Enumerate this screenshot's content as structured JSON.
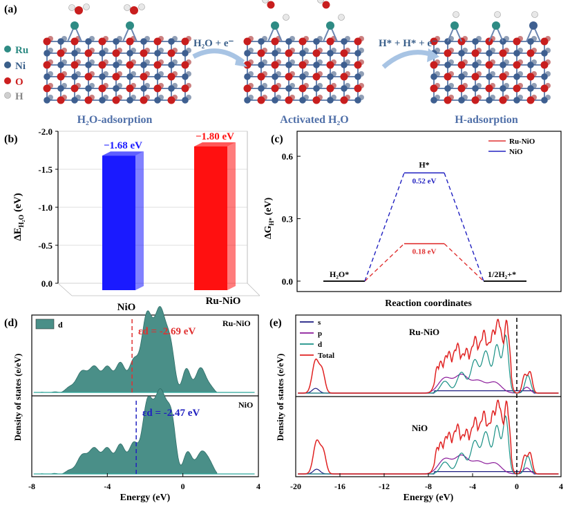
{
  "panel_a": {
    "label": "(a)",
    "legend": [
      {
        "symbol": "Ru",
        "color": "#2e8b84"
      },
      {
        "symbol": "Ni",
        "color": "#3a5f8a"
      },
      {
        "symbol": "O",
        "color": "#cc1f1f"
      },
      {
        "symbol": "H",
        "color": "#bfbfbf"
      }
    ],
    "stages": [
      "H₂O-adsorption",
      "Activated H₂O",
      "H-adsorption"
    ],
    "arrow1": "H₂O + e⁻",
    "arrow2": "H* + H* + e⁻",
    "colors": {
      "ni": "#3e5f90",
      "o": "#c81e1e",
      "ru": "#2e8b84",
      "h": "#e8e8e8",
      "caption": "#4f6fa8"
    }
  },
  "chart_data": [
    {
      "panel": "(b)",
      "type": "bar",
      "categories": [
        "NiO",
        "Ru-NiO"
      ],
      "values": [
        -1.68,
        -1.8
      ],
      "value_labels": [
        "−1.68 eV",
        "−1.80 eV"
      ],
      "colors": [
        "#1a1aff",
        "#ff1010"
      ],
      "ylabel": "ΔE_H₂O (eV)",
      "ylim": [
        0.0,
        -2.0
      ],
      "yticks": [
        "-2.0",
        "-1.5",
        "-1.0",
        "-0.5",
        "0.0"
      ]
    },
    {
      "panel": "(c)",
      "type": "line",
      "xlabel": "Reaction coordinates",
      "ylabel": "ΔG_H* (eV)",
      "ylim": [
        -0.05,
        0.72
      ],
      "yticks": [
        "0.0",
        "0.3",
        "0.6"
      ],
      "states": [
        "H₂O*",
        "H*",
        "1/2H₂+*"
      ],
      "series": [
        {
          "name": "Ru-NiO",
          "color": "#e03030",
          "values": [
            0.0,
            0.18,
            0.0
          ],
          "label": "0.18 eV"
        },
        {
          "name": "NiO",
          "color": "#2020c0",
          "values": [
            0.0,
            0.52,
            0.0
          ],
          "label": "0.52 eV"
        }
      ]
    },
    {
      "panel": "(d)",
      "type": "area",
      "xlabel": "Energy (eV)",
      "ylabel": "Density of states (e/eV)",
      "xlim": [
        -8,
        4
      ],
      "xticks": [
        "-8",
        "-4",
        "0",
        "4"
      ],
      "legend": "d",
      "subplots": [
        {
          "name": "Ru-NiO",
          "d_band_center": "εd = -2.69 eV",
          "center_value": -2.69,
          "color": "#e03030"
        },
        {
          "name": "NiO",
          "d_band_center": "εd = -2.47 eV",
          "center_value": -2.47,
          "color": "#2020c0"
        }
      ]
    },
    {
      "panel": "(e)",
      "type": "line",
      "xlabel": "Energy (eV)",
      "ylabel": "Density of states (e/eV)",
      "xlim": [
        -20,
        4
      ],
      "xticks": [
        "-20",
        "-16",
        "-12",
        "-8",
        "-4",
        "0",
        "4"
      ],
      "legend": [
        {
          "name": "s",
          "color": "#1a1a80"
        },
        {
          "name": "p",
          "color": "#8a1a9a"
        },
        {
          "name": "d",
          "color": "#178f84"
        },
        {
          "name": "Total",
          "color": "#e02020"
        }
      ],
      "subplots": [
        "Ru-NiO",
        "NiO"
      ]
    }
  ],
  "panel_labels": {
    "b": "(b)",
    "c": "(c)",
    "d": "(d)",
    "e": "(e)"
  },
  "h_star_label": "H*"
}
